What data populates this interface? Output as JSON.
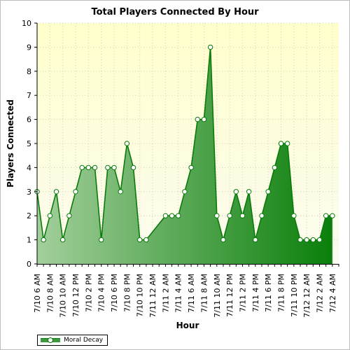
{
  "chart_data": {
    "type": "area",
    "title": "Total Players Connected By Hour",
    "xlabel": "Hour",
    "ylabel": "Players Connected",
    "ylim": [
      0,
      10
    ],
    "yticks": [
      0,
      1,
      2,
      3,
      4,
      5,
      6,
      7,
      8,
      9,
      10
    ],
    "x": [
      "7/10 6 AM",
      "7/10 7 AM",
      "7/10 8 AM",
      "7/10 9 AM",
      "7/10 10 AM",
      "7/10 11 AM",
      "7/10 12 PM",
      "7/10 1 PM",
      "7/10 2 PM",
      "7/10 3 PM",
      "7/10 4 PM",
      "7/10 5 PM",
      "7/10 6 PM",
      "7/10 7 PM",
      "7/10 8 PM",
      "7/10 9 PM",
      "7/10 10 PM",
      "7/10 11 PM",
      "7/11 12 AM",
      "7/11 1 AM",
      "7/11 2 AM",
      "7/11 3 AM",
      "7/11 4 AM",
      "7/11 5 AM",
      "7/11 6 AM",
      "7/11 7 AM",
      "7/11 8 AM",
      "7/11 9 AM",
      "7/11 10 AM",
      "7/11 11 AM",
      "7/11 12 PM",
      "7/11 1 PM",
      "7/11 2 PM",
      "7/11 3 PM",
      "7/11 4 PM",
      "7/11 5 PM",
      "7/11 6 PM",
      "7/11 7 PM",
      "7/11 8 PM",
      "7/11 9 PM",
      "7/11 10 PM",
      "7/11 11 PM",
      "7/12 12 AM",
      "7/12 1 AM",
      "7/12 2 AM",
      "7/12 3 AM",
      "7/12 4 AM",
      "7/12 5 AM"
    ],
    "tick_labels": [
      "7/10 6 AM",
      "7/10 8 AM",
      "7/10 10 AM",
      "7/10 12 PM",
      "7/10 2 PM",
      "7/10 4 PM",
      "7/10 6 PM",
      "7/10 8 PM",
      "7/10 10 PM",
      "7/11 12 AM",
      "7/11 2 AM",
      "7/11 4 AM",
      "7/11 6 AM",
      "7/11 8 AM",
      "7/11 10 AM",
      "7/11 12 PM",
      "7/11 2 PM",
      "7/11 4 PM",
      "7/11 6 PM",
      "7/11 8 PM",
      "7/11 10 PM",
      "7/12 12 AM",
      "7/12 2 AM",
      "7/12 4 AM"
    ],
    "series": [
      {
        "name": "Moral Decay",
        "points": [
          {
            "i": 0,
            "y": 3
          },
          {
            "i": 1,
            "y": 1
          },
          {
            "i": 2,
            "y": 2
          },
          {
            "i": 3,
            "y": 3
          },
          {
            "i": 4,
            "y": 1
          },
          {
            "i": 5,
            "y": 2
          },
          {
            "i": 6,
            "y": 3
          },
          {
            "i": 7,
            "y": 4
          },
          {
            "i": 8,
            "y": 4
          },
          {
            "i": 9,
            "y": 4
          },
          {
            "i": 10,
            "y": 1
          },
          {
            "i": 11,
            "y": 4
          },
          {
            "i": 12,
            "y": 4
          },
          {
            "i": 13,
            "y": 3
          },
          {
            "i": 14,
            "y": 5
          },
          {
            "i": 15,
            "y": 4
          },
          {
            "i": 16,
            "y": 1
          },
          {
            "i": 17,
            "y": 1
          },
          {
            "i": 20,
            "y": 2
          },
          {
            "i": 21,
            "y": 2
          },
          {
            "i": 22,
            "y": 2
          },
          {
            "i": 23,
            "y": 3
          },
          {
            "i": 24,
            "y": 4
          },
          {
            "i": 25,
            "y": 6
          },
          {
            "i": 26,
            "y": 6
          },
          {
            "i": 27,
            "y": 9
          },
          {
            "i": 28,
            "y": 2
          },
          {
            "i": 29,
            "y": 1
          },
          {
            "i": 30,
            "y": 2
          },
          {
            "i": 31,
            "y": 3
          },
          {
            "i": 32,
            "y": 2
          },
          {
            "i": 33,
            "y": 3
          },
          {
            "i": 34,
            "y": 1
          },
          {
            "i": 35,
            "y": 2
          },
          {
            "i": 36,
            "y": 3
          },
          {
            "i": 37,
            "y": 4
          },
          {
            "i": 38,
            "y": 5
          },
          {
            "i": 39,
            "y": 5
          },
          {
            "i": 40,
            "y": 2
          },
          {
            "i": 41,
            "y": 1
          },
          {
            "i": 42,
            "y": 1
          },
          {
            "i": 43,
            "y": 1
          },
          {
            "i": 44,
            "y": 1
          },
          {
            "i": 45,
            "y": 2
          },
          {
            "i": 46,
            "y": 2
          }
        ]
      }
    ],
    "grid": true,
    "legend": "bottom-left",
    "colors": {
      "line": "#0a7a0a",
      "fill_start": "#a3cf9c",
      "fill_end": "#0a7f0a",
      "plot_bg_top": "#ffffcc",
      "plot_bg_bottom": "#fbfbf0",
      "grid": "#cfcfbd"
    }
  }
}
